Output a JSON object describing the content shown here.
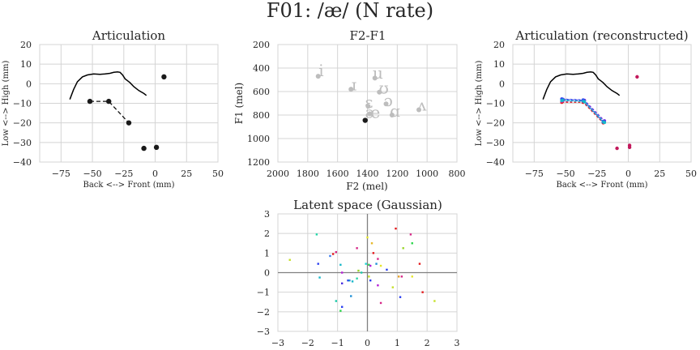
{
  "figure": {
    "title": "F01: /æ/ (N rate)"
  },
  "chart_data": [
    {
      "type": "line",
      "panel": "articulation",
      "title": "Articulation",
      "xlabel": "Back <--> Front (mm)",
      "ylabel": "Low <--> High (mm)",
      "xlim": [
        -92,
        50
      ],
      "ylim": [
        -40,
        20
      ],
      "xticks": [
        -75,
        -50,
        -25,
        0,
        25,
        50
      ],
      "yticks": [
        20,
        10,
        0,
        -10,
        -20,
        -30,
        -40
      ],
      "grid": true,
      "palate": {
        "x": [
          -68,
          -65,
          -62,
          -58,
          -54,
          -49,
          -44,
          -40,
          -36,
          -33,
          -30,
          -28,
          -26,
          -24,
          -22,
          -20,
          -17,
          -13,
          -9,
          -7
        ],
        "y": [
          -8,
          -3,
          1,
          3.5,
          4.5,
          5,
          4.8,
          5,
          5.3,
          5.8,
          6,
          5.8,
          4.5,
          2.5,
          1.5,
          0.5,
          -1.5,
          -3.5,
          -5,
          -6
        ]
      },
      "tongue": {
        "x": [
          -52,
          -37,
          -21
        ],
        "y": [
          -9,
          -9,
          -20
        ]
      },
      "other_points": {
        "x": [
          7,
          -9,
          1
        ],
        "y": [
          3.5,
          -33,
          -32.5
        ]
      }
    },
    {
      "type": "scatter",
      "panel": "formants",
      "title": "F2-F1",
      "xlabel": "F2 (mel)",
      "ylabel": "F1 (mel)",
      "xlim": [
        2000,
        800
      ],
      "ylim": [
        1200,
        200
      ],
      "xticks": [
        2000,
        1800,
        1600,
        1400,
        1200,
        1000,
        800
      ],
      "yticks": [
        200,
        400,
        600,
        800,
        1000,
        1200
      ],
      "grid": true,
      "vowels": [
        {
          "symbol": "i",
          "x": 1710,
          "y": 420
        },
        {
          "symbol": "ɪ",
          "x": 1490,
          "y": 540
        },
        {
          "symbol": "u",
          "x": 1330,
          "y": 440
        },
        {
          "symbol": "ʊ",
          "x": 1290,
          "y": 570
        },
        {
          "symbol": "ɛ",
          "x": 1390,
          "y": 690
        },
        {
          "symbol": "ɔ",
          "x": 1260,
          "y": 675
        },
        {
          "symbol": "æ",
          "x": 1365,
          "y": 775
        },
        {
          "symbol": "ɑ",
          "x": 1215,
          "y": 765
        },
        {
          "symbol": "ʌ",
          "x": 1035,
          "y": 715
        }
      ],
      "vowel_points": [
        {
          "x": 1730,
          "y": 470
        },
        {
          "x": 1510,
          "y": 580
        },
        {
          "x": 1350,
          "y": 485
        },
        {
          "x": 1320,
          "y": 605
        },
        {
          "x": 1395,
          "y": 725
        },
        {
          "x": 1275,
          "y": 705
        },
        {
          "x": 1385,
          "y": 790
        },
        {
          "x": 1235,
          "y": 800
        },
        {
          "x": 1055,
          "y": 755
        }
      ],
      "target": {
        "x": 1415,
        "y": 845
      }
    },
    {
      "type": "line",
      "panel": "articulation-reconstructed",
      "title": "Articulation (reconstructed)",
      "xlabel": "Back <--> Front (mm)",
      "ylabel": "Low <--> High (mm)",
      "xlim": [
        -92,
        50
      ],
      "ylim": [
        -40,
        20
      ],
      "xticks": [
        -75,
        -50,
        -25,
        0,
        25,
        50
      ],
      "yticks": [
        20,
        10,
        0,
        -10,
        -20,
        -30,
        -40
      ],
      "grid": true,
      "palate": {
        "x": [
          -68,
          -65,
          -62,
          -58,
          -54,
          -49,
          -44,
          -40,
          -36,
          -33,
          -30,
          -28,
          -26,
          -24,
          -22,
          -20,
          -17,
          -13,
          -9,
          -7
        ],
        "y": [
          -8,
          -3,
          1,
          3.5,
          4.5,
          5,
          4.8,
          5,
          5.3,
          5.8,
          6,
          5.8,
          4.5,
          2.5,
          1.5,
          0.5,
          -1.5,
          -3.5,
          -5,
          -6
        ]
      },
      "tongue_samples": [
        {
          "color": "#e41a1c",
          "x": [
            -53,
            -36,
            -20
          ],
          "y": [
            -9.5,
            -9.5,
            -20
          ]
        },
        {
          "color": "#d62787",
          "x": [
            -53,
            -36,
            -20
          ],
          "y": [
            -9,
            -9,
            -19.5
          ]
        },
        {
          "color": "#b51fd6",
          "x": [
            -52,
            -35,
            -19
          ],
          "y": [
            -8.5,
            -8.5,
            -19
          ]
        },
        {
          "color": "#6a2fe0",
          "x": [
            -52,
            -35,
            -19
          ],
          "y": [
            -8,
            -8.5,
            -19
          ]
        },
        {
          "color": "#2a3ff0",
          "x": [
            -53,
            -36,
            -20
          ],
          "y": [
            -7.8,
            -8.3,
            -19.3
          ]
        },
        {
          "color": "#1e90d6",
          "x": [
            -52,
            -36,
            -20
          ],
          "y": [
            -8.3,
            -8.8,
            -19.6
          ]
        },
        {
          "color": "#17b8c9",
          "x": [
            -53,
            -35,
            -19
          ],
          "y": [
            -8.6,
            -9.2,
            -19.8
          ]
        }
      ],
      "other_points": {
        "x": [
          7,
          -9,
          1,
          1
        ],
        "y": [
          3.5,
          -33,
          -32.5,
          -31.5
        ]
      }
    },
    {
      "type": "scatter",
      "panel": "latent",
      "title": "Latent space (Gaussian)",
      "xlim": [
        -3,
        3
      ],
      "ylim": [
        -3,
        3
      ],
      "xticks": [
        -3,
        -2,
        -1,
        0,
        1,
        2,
        3
      ],
      "yticks": [
        3,
        2,
        1,
        0,
        -1,
        -2,
        -3
      ],
      "grid": true,
      "points": [
        {
          "x": -2.6,
          "y": 0.65,
          "c": "#c6e02a"
        },
        {
          "x": -1.7,
          "y": 1.95,
          "c": "#1fd6a8"
        },
        {
          "x": -1.65,
          "y": 0.45,
          "c": "#2a3ff0"
        },
        {
          "x": -1.6,
          "y": -0.25,
          "c": "#17b8c9"
        },
        {
          "x": -1.25,
          "y": 0.85,
          "c": "#3a7bf0"
        },
        {
          "x": -1.15,
          "y": 0.95,
          "c": "#e41a1c"
        },
        {
          "x": -1.05,
          "y": 1.05,
          "c": "#d62787"
        },
        {
          "x": -1.05,
          "y": -1.45,
          "c": "#17c9a8"
        },
        {
          "x": -0.9,
          "y": 0.4,
          "c": "#17b8c9"
        },
        {
          "x": -0.85,
          "y": 0.0,
          "c": "#b51fd6"
        },
        {
          "x": -0.85,
          "y": -0.55,
          "c": "#4a2fe0"
        },
        {
          "x": -0.85,
          "y": -1.75,
          "c": "#2a3ff0"
        },
        {
          "x": -0.9,
          "y": -1.95,
          "c": "#2ad64a"
        },
        {
          "x": -0.65,
          "y": -0.4,
          "c": "#2a3ff0"
        },
        {
          "x": -0.6,
          "y": -0.4,
          "c": "#1e90d6"
        },
        {
          "x": -0.5,
          "y": -0.45,
          "c": "#17b8c9"
        },
        {
          "x": -0.55,
          "y": -1.2,
          "c": "#1e90d6"
        },
        {
          "x": -0.35,
          "y": 1.25,
          "c": "#d62787"
        },
        {
          "x": -0.35,
          "y": -0.3,
          "c": "#2ad6a8"
        },
        {
          "x": -0.3,
          "y": 0.1,
          "c": "#9ad62a"
        },
        {
          "x": -0.2,
          "y": 0.0,
          "c": "#17c9a8"
        },
        {
          "x": -0.05,
          "y": 0.45,
          "c": "#1fd6d6"
        },
        {
          "x": 0.0,
          "y": 1.8,
          "c": "#e6e62a"
        },
        {
          "x": 0.05,
          "y": 0.4,
          "c": "#2ad64a"
        },
        {
          "x": 0.05,
          "y": -0.2,
          "c": "#c6e02a"
        },
        {
          "x": 0.1,
          "y": 0.35,
          "c": "#b51fd6"
        },
        {
          "x": 0.1,
          "y": -0.4,
          "c": "#2a3ff0"
        },
        {
          "x": 0.15,
          "y": 1.5,
          "c": "#e6b82a"
        },
        {
          "x": 0.2,
          "y": 1.0,
          "c": "#e41a1c"
        },
        {
          "x": 0.3,
          "y": 0.45,
          "c": "#1e90d6"
        },
        {
          "x": 0.35,
          "y": 0.7,
          "c": "#d62787"
        },
        {
          "x": 0.35,
          "y": -0.65,
          "c": "#b51fd6"
        },
        {
          "x": 0.45,
          "y": 0.35,
          "c": "#e6e62a"
        },
        {
          "x": 0.45,
          "y": -1.55,
          "c": "#d62787"
        },
        {
          "x": 0.65,
          "y": 0.15,
          "c": "#2a3ff0"
        },
        {
          "x": 0.85,
          "y": -0.75,
          "c": "#c6e02a"
        },
        {
          "x": 0.95,
          "y": 2.25,
          "c": "#e41a1c"
        },
        {
          "x": 1.05,
          "y": -0.2,
          "c": "#e6a02a"
        },
        {
          "x": 1.1,
          "y": -1.25,
          "c": "#2a3ff0"
        },
        {
          "x": 1.15,
          "y": -0.2,
          "c": "#d62787"
        },
        {
          "x": 1.2,
          "y": 1.25,
          "c": "#9ad62a"
        },
        {
          "x": 1.45,
          "y": 1.95,
          "c": "#d62787"
        },
        {
          "x": 1.5,
          "y": 1.5,
          "c": "#2ad64a"
        },
        {
          "x": 1.5,
          "y": -0.2,
          "c": "#e6e62a"
        },
        {
          "x": 1.75,
          "y": 0.45,
          "c": "#e41a1c"
        },
        {
          "x": 1.85,
          "y": -1.0,
          "c": "#e41a1c"
        },
        {
          "x": 2.25,
          "y": -1.45,
          "c": "#c6e02a"
        }
      ]
    }
  ]
}
